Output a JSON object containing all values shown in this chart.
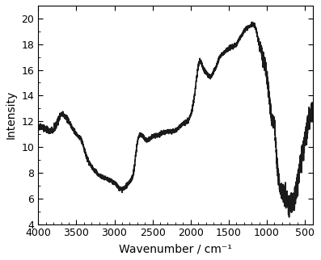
{
  "title": "",
  "xlabel": "Wavenumber / cm⁻¹",
  "ylabel": "Intensity",
  "xlim": [
    4000,
    400
  ],
  "ylim": [
    4,
    21
  ],
  "yticks": [
    4,
    6,
    8,
    10,
    12,
    14,
    16,
    18,
    20
  ],
  "xticks": [
    4000,
    3500,
    3000,
    2500,
    2000,
    1500,
    1000,
    500
  ],
  "line_color": "#1a1a1a",
  "line_width": 1.2,
  "background_color": "#ffffff"
}
